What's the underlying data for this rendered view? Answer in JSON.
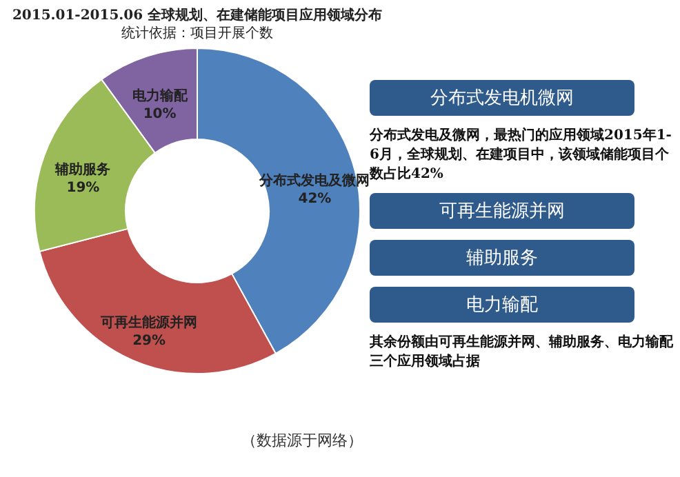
{
  "chart_data": [
    {
      "type": "donut",
      "title": "2015.01-2015.06 全球规划、在建储能项目应用领域分布",
      "subtitle": "统计依据：项目开展个数",
      "categories": [
        "分布式发电及微网",
        "可再生能源并网",
        "辅助服务",
        "电力输配"
      ],
      "values": [
        42,
        29,
        19,
        10
      ],
      "colors": [
        "#4f81bd",
        "#c0504d",
        "#9bbb59",
        "#8064a2"
      ],
      "value_labels": [
        "42%",
        "29%",
        "19%",
        "10%"
      ],
      "legend": false,
      "annotations": [
        "（数据源于网络）"
      ]
    },
    {
      "type": "other",
      "annotations": [
        "分布式发电机微网",
        "分布式发电及微网，最热门的应用领域2015年1-6月，全球规划、在建项目中，该领域储能项目个数占比42%",
        "可再生能源并网",
        "辅助服务",
        "电力输配",
        "其余份额由可再生能源并网、辅助服务、电力输配三个应用领域占据"
      ]
    }
  ]
}
